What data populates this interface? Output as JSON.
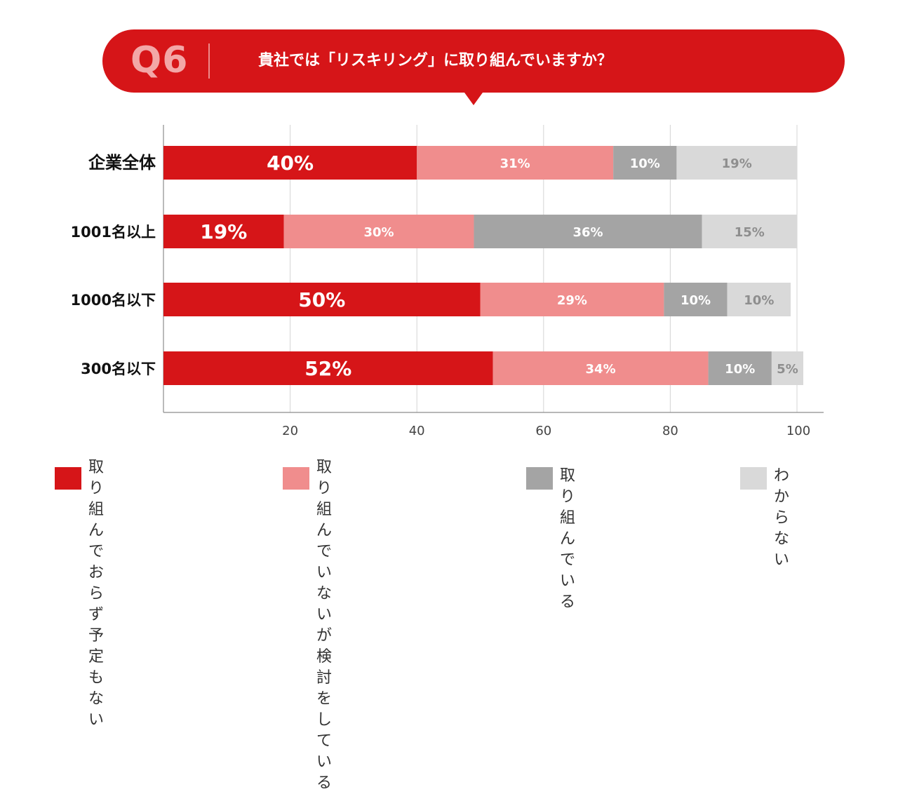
{
  "header": {
    "q_number": "Q6",
    "question": "貴社では「リスキリング」に取り組んでいますか？"
  },
  "colors": {
    "red": "#d61518",
    "pink": "#f08d8d",
    "gray": "#a4a4a4",
    "lightgray": "#d9d9d9",
    "header_bg": "#d61518"
  },
  "chart_data": {
    "type": "bar",
    "orientation": "horizontal",
    "stacked": true,
    "title": "貴社では「リスキリング」に取り組んでいますか？",
    "categories": [
      "企業全体",
      "1001名以上",
      "1000名以下",
      "300名以下"
    ],
    "series": [
      {
        "name": "取り組んでおらず予定もない",
        "color": "#d61518",
        "values": [
          40,
          19,
          50,
          52
        ],
        "labels": [
          "40%",
          "19%",
          "50%",
          "52%"
        ]
      },
      {
        "name": "取り組んでいないが検討をしている",
        "color": "#f08d8d",
        "values": [
          31,
          30,
          29,
          34
        ],
        "labels": [
          "31%",
          "30%",
          "29%",
          "34%"
        ]
      },
      {
        "name": "取り組んでいる",
        "color": "#a4a4a4",
        "values": [
          10,
          36,
          10,
          10
        ],
        "labels": [
          "10%",
          "36%",
          "10%",
          "10%"
        ]
      },
      {
        "name": "わからない",
        "color": "#d9d9d9",
        "values": [
          19,
          15,
          10,
          5
        ],
        "labels": [
          "19%",
          "15%",
          "10%",
          "5%"
        ]
      }
    ],
    "xlim": [
      0,
      100
    ],
    "xticks": [
      20,
      40,
      60,
      80,
      100
    ],
    "xtick_labels": [
      "20",
      "40",
      "60",
      "80",
      "100"
    ],
    "grid": true,
    "legend_position": "bottom"
  },
  "legend": [
    {
      "label": "取り組んでおらず\n予定もない"
    },
    {
      "label": "取り組んでいないが\n検討をしている"
    },
    {
      "label": "取り組んでいる"
    },
    {
      "label": "わからない"
    }
  ]
}
